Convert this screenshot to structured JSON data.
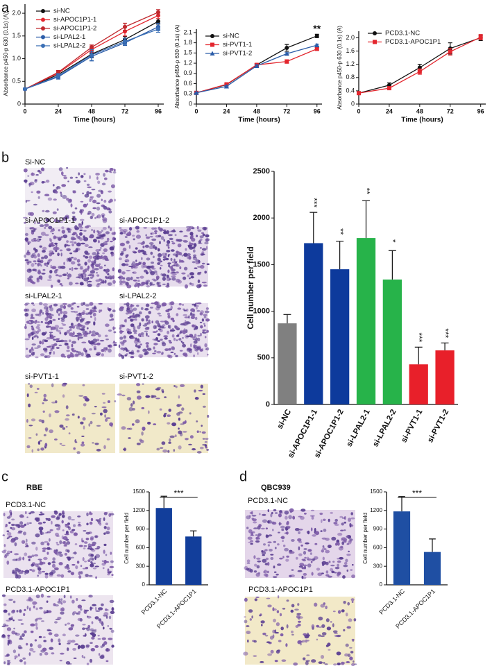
{
  "panel_labels": [
    "a",
    "b",
    "c",
    "d"
  ],
  "cell_lines": [
    "RBE",
    "QBC939"
  ],
  "image_labels": [
    "Si-NC",
    "si-APOC1P1-1",
    "si-APOC1P1-2",
    "si-LPAL2-1",
    "si-LPAL2-2",
    "si-PVT1-1",
    "si-PVT1-2",
    "PCD3.1-NC",
    "PCD3.1-APOC1P1",
    "PCD3.1-NC",
    "PCD3.1-APOC1P1"
  ],
  "chart_data": [
    {
      "type": "line",
      "x": [
        0,
        24,
        48,
        72,
        96
      ],
      "xlim": [
        0,
        100
      ],
      "xticks": [
        0,
        24,
        48,
        72,
        96
      ],
      "ylim": [
        0,
        2.2
      ],
      "yticks": [
        0,
        0.5,
        {
          "value": 1,
          "label": "1.0"
        },
        1.5,
        {
          "value": 2,
          "label": "2.0"
        }
      ],
      "x_label": "Time (hours)",
      "y_label": "Absorbance p450-p 630 (0.1s) (A)",
      "series": [
        {
          "name": "si-NC",
          "color": "#111111",
          "marker": "circle",
          "values": [
            0.33,
            0.65,
            1.1,
            1.42,
            1.82
          ],
          "errors": [
            0.02,
            0.05,
            0.08,
            0.07,
            0.06
          ]
        },
        {
          "name": "si-APOC1P1-1",
          "color": "#e3262e",
          "marker": "circle",
          "values": [
            0.33,
            0.68,
            1.2,
            1.6,
            1.95
          ],
          "errors": [
            0.02,
            0.04,
            0.06,
            0.1,
            0.07
          ]
        },
        {
          "name": "si-APOC1P1-2",
          "color": "#c0282d",
          "marker": "circle",
          "values": [
            0.33,
            0.7,
            1.25,
            1.7,
            2.02
          ],
          "errors": [
            0.02,
            0.04,
            0.05,
            0.08,
            0.06
          ]
        },
        {
          "name": "si-LPAL2-1",
          "color": "#2b5ca8",
          "marker": "circle",
          "values": [
            0.33,
            0.6,
            1.05,
            1.35,
            1.7
          ],
          "errors": [
            0.02,
            0.05,
            0.1,
            0.06,
            0.08
          ]
        },
        {
          "name": "si-LPAL2-2",
          "color": "#3a6fb5",
          "marker": "circle",
          "values": [
            0.33,
            0.62,
            1.08,
            1.38,
            1.65
          ],
          "errors": [
            0.02,
            0.05,
            0.12,
            0.07,
            0.07
          ]
        }
      ]
    },
    {
      "type": "line",
      "x": [
        0,
        24,
        48,
        72,
        96
      ],
      "xlim": [
        0,
        100
      ],
      "xticks": [
        0,
        24,
        48,
        72,
        96
      ],
      "ylim": [
        0,
        2.2
      ],
      "yticks": [
        0,
        0.3,
        0.6,
        0.9,
        1.2,
        1.5,
        1.8,
        2.1
      ],
      "x_label": "Time (hours)",
      "y_label": "Absorbance p450-p 630 (0.1s) (A)",
      "annotation": "**",
      "series": [
        {
          "name": "si-NC",
          "color": "#111111",
          "marker": "circle",
          "values": [
            0.33,
            0.57,
            1.15,
            1.65,
            2.0
          ],
          "errors": [
            0.02,
            0.03,
            0.04,
            0.1,
            0.05
          ]
        },
        {
          "name": "si-PVT1-1",
          "color": "#e3262e",
          "marker": "square",
          "values": [
            0.33,
            0.58,
            1.15,
            1.25,
            1.62
          ],
          "errors": [
            0.02,
            0.03,
            0.03,
            0.05,
            0.04
          ]
        },
        {
          "name": "si-PVT1-2",
          "color": "#2b5ca8",
          "marker": "triangle",
          "values": [
            0.33,
            0.52,
            1.12,
            1.48,
            1.73
          ],
          "errors": [
            0.02,
            0.02,
            0.03,
            0.03,
            0.03
          ]
        }
      ]
    },
    {
      "type": "line",
      "x": [
        0,
        24,
        48,
        72,
        96
      ],
      "xlim": [
        0,
        100
      ],
      "xticks": [
        0,
        24,
        48,
        72,
        96
      ],
      "ylim": [
        0,
        2.2
      ],
      "yticks": [
        0,
        0.4,
        0.8,
        1.2,
        1.6,
        {
          "value": 2,
          "label": "2.0"
        }
      ],
      "x_label": "Time (hours)",
      "y_label": "Absorbance p450-p 630 (0.1s) (A)",
      "series": [
        {
          "name": "PCD3.1-NC",
          "color": "#111111",
          "marker": "circle",
          "values": [
            0.33,
            0.57,
            1.1,
            1.68,
            2.0
          ],
          "errors": [
            0.02,
            0.07,
            0.1,
            0.17,
            0.08
          ]
        },
        {
          "name": "PCD3.1-APOC1P1",
          "color": "#e3262e",
          "marker": "square",
          "values": [
            0.33,
            0.48,
            0.98,
            1.58,
            2.02
          ],
          "errors": [
            0.02,
            0.04,
            0.08,
            0.1,
            0.08
          ]
        }
      ]
    },
    {
      "type": "bar",
      "categories": [
        "si-NC",
        "si-APOC1P1-1",
        "si-APOC1P1-2",
        "si-LPAL2-1",
        "si-LPAL2-2",
        "si-PVT1-1",
        "si-PVT1-2"
      ],
      "values": [
        870,
        1730,
        1450,
        1785,
        1340,
        430,
        580
      ],
      "errors": [
        95,
        330,
        300,
        400,
        310,
        185,
        80
      ],
      "colors": [
        "#808080",
        "#0d3a9c",
        "#0d3a9c",
        "#27b34a",
        "#27b34a",
        "#e8202a",
        "#e8202a"
      ],
      "significance": [
        null,
        "***",
        "**",
        "**",
        "*",
        "***",
        "***"
      ],
      "ylim": [
        0,
        2500
      ],
      "yticks": [
        0,
        500,
        1000,
        1500,
        2000,
        2500
      ],
      "y_label": "Cell number per field"
    },
    {
      "type": "bar",
      "categories": [
        "PCD3.1-NC",
        "PCD3.1-APOC1P1"
      ],
      "values": [
        1240,
        780
      ],
      "errors": [
        190,
        90
      ],
      "color": "#123e9b",
      "significance": "***",
      "ylim": [
        0,
        1500
      ],
      "yticks": [
        0,
        300,
        600,
        900,
        1200,
        1500
      ],
      "y_label": "Cell number per field"
    },
    {
      "type": "bar",
      "categories": [
        "PCD3.1-NC",
        "PCD3.1-APOC1P1"
      ],
      "values": [
        1185,
        530
      ],
      "errors": [
        240,
        210
      ],
      "color": "#1f4fa3",
      "significance": "***",
      "ylim": [
        0,
        1500
      ],
      "yticks": [
        0,
        300,
        600,
        900,
        1200,
        1500
      ],
      "y_label": "Cell number per field"
    }
  ]
}
